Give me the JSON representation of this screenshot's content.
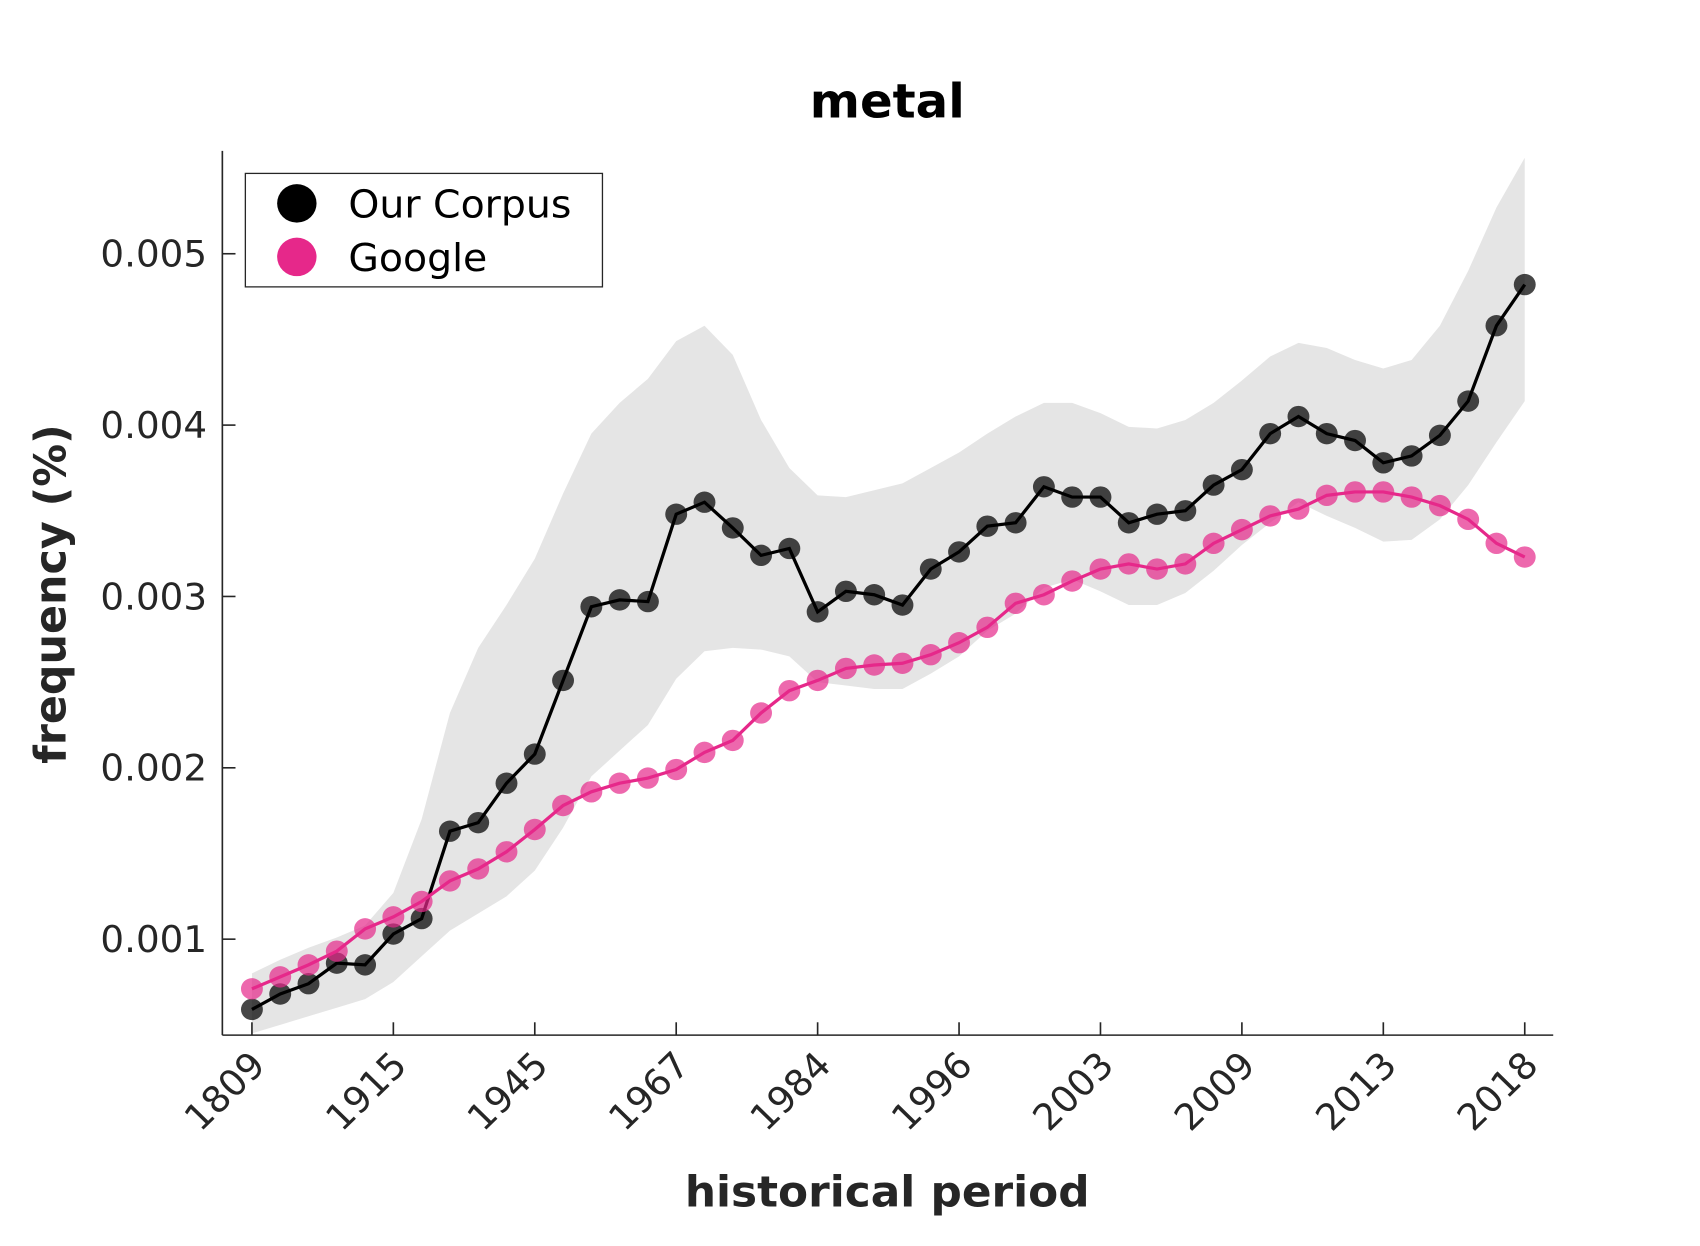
{
  "chart_data": {
    "type": "line",
    "title": "metal",
    "x_label": "historical period",
    "y_label": "frequency (%)",
    "categories": [
      "1809",
      null,
      null,
      null,
      null,
      "1915",
      null,
      null,
      null,
      null,
      "1945",
      null,
      null,
      null,
      null,
      "1967",
      null,
      null,
      null,
      null,
      "1984",
      null,
      null,
      null,
      null,
      "1996",
      null,
      null,
      null,
      null,
      "2003",
      null,
      null,
      null,
      null,
      "2009",
      null,
      null,
      null,
      null,
      "2013",
      null,
      null,
      null,
      null,
      "2018"
    ],
    "ylim": [
      0.00044,
      0.0056
    ],
    "yticks": [
      0.001,
      0.002,
      0.003,
      0.004,
      0.005
    ],
    "legend": "upper-left",
    "band": {
      "color": "#e5e5e5",
      "upper": [
        0.0008,
        0.00088,
        0.00095,
        0.00101,
        0.00108,
        0.00127,
        0.0017,
        0.00232,
        0.0027,
        0.00295,
        0.00322,
        0.0036,
        0.00395,
        0.00413,
        0.00427,
        0.00449,
        0.00458,
        0.00441,
        0.00403,
        0.00375,
        0.00359,
        0.00358,
        0.00362,
        0.00366,
        0.00375,
        0.00384,
        0.00395,
        0.00405,
        0.00413,
        0.00413,
        0.00407,
        0.00399,
        0.00398,
        0.00403,
        0.00413,
        0.00426,
        0.0044,
        0.00448,
        0.00445,
        0.00438,
        0.00433,
        0.00438,
        0.00458,
        0.0049,
        0.00527,
        0.00556
      ],
      "lower": [
        0.00045,
        0.0005,
        0.00055,
        0.0006,
        0.00065,
        0.00075,
        0.0009,
        0.00105,
        0.00115,
        0.00125,
        0.0014,
        0.00165,
        0.00195,
        0.0021,
        0.00225,
        0.00252,
        0.00268,
        0.0027,
        0.00269,
        0.00265,
        0.0025,
        0.00248,
        0.00246,
        0.00246,
        0.00255,
        0.00265,
        0.0028,
        0.0029,
        0.00305,
        0.0031,
        0.00303,
        0.00295,
        0.00295,
        0.00302,
        0.00315,
        0.0033,
        0.00343,
        0.00355,
        0.00347,
        0.0034,
        0.00332,
        0.00333,
        0.00345,
        0.00365,
        0.0039,
        0.00414
      ]
    },
    "series": [
      {
        "name": "Our Corpus",
        "color": "#000000",
        "values": [
          0.00059,
          0.00068,
          0.00074,
          0.00086,
          0.00085,
          0.00103,
          0.00112,
          0.00163,
          0.00168,
          0.00191,
          0.00208,
          0.00251,
          0.00294,
          0.00298,
          0.00297,
          0.00348,
          0.00355,
          0.0034,
          0.00324,
          0.00328,
          0.00291,
          0.00303,
          0.00301,
          0.00295,
          0.00316,
          0.00326,
          0.00341,
          0.00343,
          0.00364,
          0.00358,
          0.00358,
          0.00343,
          0.00348,
          0.0035,
          0.00365,
          0.00374,
          0.00395,
          0.00405,
          0.00395,
          0.00391,
          0.00378,
          0.00382,
          0.00394,
          0.00414,
          0.00458,
          0.00482
        ]
      },
      {
        "name": "Google",
        "color": "#e6288a",
        "values": [
          0.00071,
          0.00078,
          0.00085,
          0.00093,
          0.00106,
          0.00113,
          0.00122,
          0.00134,
          0.00141,
          0.00151,
          0.00164,
          0.00178,
          0.00186,
          0.00191,
          0.00194,
          0.00199,
          0.00209,
          0.00216,
          0.00232,
          0.00245,
          0.00251,
          0.00258,
          0.0026,
          0.00261,
          0.00266,
          0.00273,
          0.00282,
          0.00296,
          0.00301,
          0.00309,
          0.00316,
          0.00319,
          0.00316,
          0.00319,
          0.00331,
          0.00339,
          0.00347,
          0.00351,
          0.00359,
          0.00361,
          0.00361,
          0.00358,
          0.00353,
          0.00345,
          0.00331,
          0.00323
        ]
      }
    ]
  }
}
